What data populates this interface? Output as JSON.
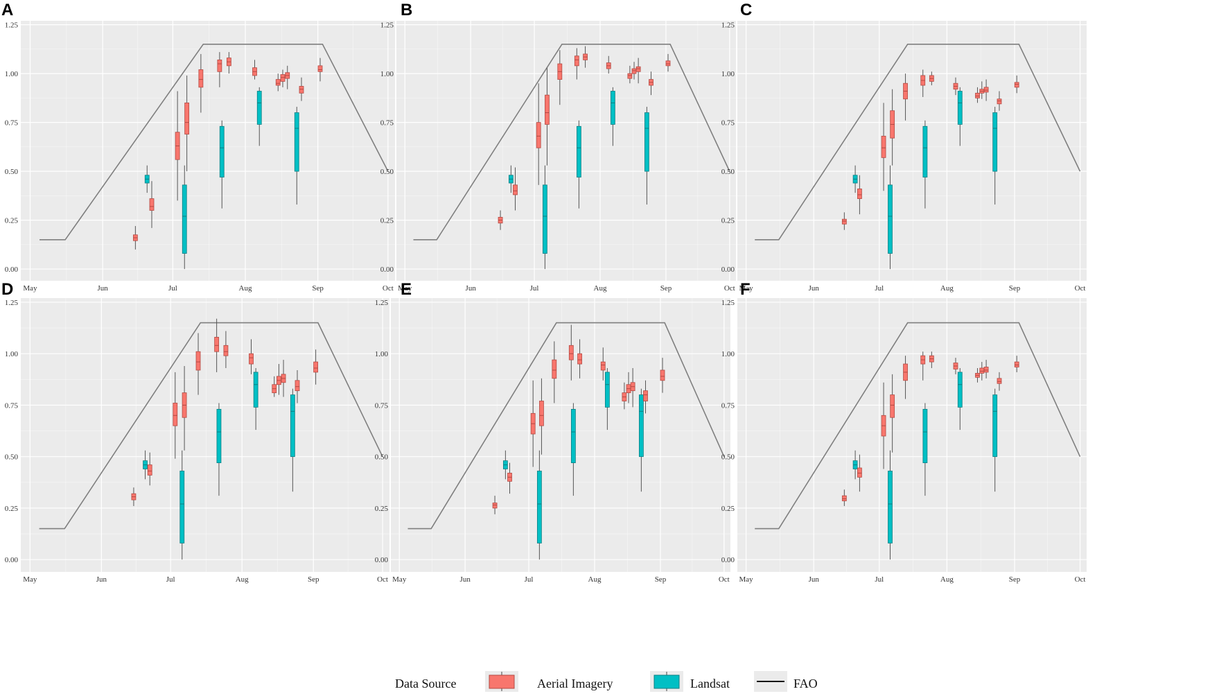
{
  "chart_data": {
    "type": "boxplot",
    "x_ticks": [
      "May",
      "Jun",
      "Jul",
      "Aug",
      "Sep",
      "Oct"
    ],
    "x_tick_days": [
      0,
      31,
      61,
      92,
      123,
      153
    ],
    "y_ticks": [
      "0.00",
      "0.25",
      "0.50",
      "0.75",
      "1.00",
      "1.25"
    ],
    "y_tick_values": [
      0,
      0.25,
      0.5,
      0.75,
      1.0,
      1.25
    ],
    "ylim": [
      -0.06,
      1.27
    ],
    "xlim": [
      -4,
      156
    ],
    "colors": {
      "aerial": "#F8766D",
      "landsat": "#00BFC4",
      "fao": "#7f7f7f",
      "panel_bg": "#EBEBEB",
      "grid": "#ffffff"
    },
    "fao_curve": {
      "name": "FAO",
      "x": [
        4,
        15,
        74,
        125,
        153
      ],
      "y": [
        0.15,
        0.15,
        1.15,
        1.15,
        0.5
      ]
    },
    "legend": {
      "title": "Data Source",
      "entries": [
        "Aerial Imagery",
        "Landsat",
        "FAO"
      ]
    },
    "landsat": [
      {
        "x": 50,
        "lower": 0.39,
        "q1": 0.44,
        "median": 0.46,
        "q3": 0.48,
        "upper": 0.53
      },
      {
        "x": 66,
        "lower": 0.0,
        "q1": 0.08,
        "median": 0.27,
        "q3": 0.43,
        "upper": 0.53
      },
      {
        "x": 82,
        "lower": 0.31,
        "q1": 0.47,
        "median": 0.62,
        "q3": 0.73,
        "upper": 0.76
      },
      {
        "x": 98,
        "lower": 0.63,
        "q1": 0.74,
        "median": 0.85,
        "q3": 0.91,
        "upper": 0.93
      },
      {
        "x": 114,
        "lower": 0.33,
        "q1": 0.5,
        "median": 0.72,
        "q3": 0.8,
        "upper": 0.83
      }
    ],
    "panels": [
      {
        "label": "A",
        "aerial": [
          {
            "x": 45,
            "lower": 0.1,
            "q1": 0.145,
            "median": 0.16,
            "q3": 0.175,
            "upper": 0.22
          },
          {
            "x": 52,
            "lower": 0.21,
            "q1": 0.3,
            "median": 0.32,
            "q3": 0.36,
            "upper": 0.45
          },
          {
            "x": 63,
            "lower": 0.35,
            "q1": 0.56,
            "median": 0.63,
            "q3": 0.7,
            "upper": 0.91
          },
          {
            "x": 67,
            "lower": 0.5,
            "q1": 0.69,
            "median": 0.75,
            "q3": 0.85,
            "upper": 0.99
          },
          {
            "x": 73,
            "lower": 0.8,
            "q1": 0.93,
            "median": 0.97,
            "q3": 1.02,
            "upper": 1.1
          },
          {
            "x": 81,
            "lower": 0.93,
            "q1": 1.01,
            "median": 1.05,
            "q3": 1.07,
            "upper": 1.11
          },
          {
            "x": 85,
            "lower": 1.0,
            "q1": 1.04,
            "median": 1.06,
            "q3": 1.08,
            "upper": 1.11
          },
          {
            "x": 96,
            "lower": 0.97,
            "q1": 0.99,
            "median": 1.01,
            "q3": 1.03,
            "upper": 1.07
          },
          {
            "x": 106,
            "lower": 0.91,
            "q1": 0.94,
            "median": 0.95,
            "q3": 0.97,
            "upper": 1.0
          },
          {
            "x": 108,
            "lower": 0.93,
            "q1": 0.96,
            "median": 0.98,
            "q3": 0.995,
            "upper": 1.02
          },
          {
            "x": 110,
            "lower": 0.92,
            "q1": 0.975,
            "median": 0.99,
            "q3": 1.005,
            "upper": 1.04
          },
          {
            "x": 116,
            "lower": 0.86,
            "q1": 0.9,
            "median": 0.92,
            "q3": 0.935,
            "upper": 0.98
          },
          {
            "x": 124,
            "lower": 0.96,
            "q1": 1.01,
            "median": 1.02,
            "q3": 1.04,
            "upper": 1.08
          }
        ]
      },
      {
        "label": "B",
        "aerial": [
          {
            "x": 45,
            "lower": 0.2,
            "q1": 0.235,
            "median": 0.25,
            "q3": 0.265,
            "upper": 0.3
          },
          {
            "x": 52,
            "lower": 0.3,
            "q1": 0.38,
            "median": 0.4,
            "q3": 0.43,
            "upper": 0.52
          },
          {
            "x": 63,
            "lower": 0.43,
            "q1": 0.62,
            "median": 0.68,
            "q3": 0.75,
            "upper": 0.95
          },
          {
            "x": 67,
            "lower": 0.53,
            "q1": 0.74,
            "median": 0.8,
            "q3": 0.89,
            "upper": 1.03
          },
          {
            "x": 73,
            "lower": 0.84,
            "q1": 0.97,
            "median": 1.01,
            "q3": 1.05,
            "upper": 1.12
          },
          {
            "x": 81,
            "lower": 0.97,
            "q1": 1.04,
            "median": 1.07,
            "q3": 1.09,
            "upper": 1.13
          },
          {
            "x": 85,
            "lower": 1.03,
            "q1": 1.07,
            "median": 1.085,
            "q3": 1.1,
            "upper": 1.14
          },
          {
            "x": 96,
            "lower": 1.0,
            "q1": 1.025,
            "median": 1.04,
            "q3": 1.055,
            "upper": 1.09
          },
          {
            "x": 106,
            "lower": 0.95,
            "q1": 0.975,
            "median": 0.99,
            "q3": 1.0,
            "upper": 1.04
          },
          {
            "x": 108,
            "lower": 0.97,
            "q1": 1.0,
            "median": 1.015,
            "q3": 1.025,
            "upper": 1.06
          },
          {
            "x": 110,
            "lower": 0.95,
            "q1": 1.01,
            "median": 1.025,
            "q3": 1.035,
            "upper": 1.08
          },
          {
            "x": 116,
            "lower": 0.89,
            "q1": 0.94,
            "median": 0.955,
            "q3": 0.97,
            "upper": 1.01
          },
          {
            "x": 124,
            "lower": 1.01,
            "q1": 1.04,
            "median": 1.05,
            "q3": 1.065,
            "upper": 1.1
          }
        ]
      },
      {
        "label": "C",
        "aerial": [
          {
            "x": 45,
            "lower": 0.2,
            "q1": 0.23,
            "median": 0.245,
            "q3": 0.255,
            "upper": 0.29
          },
          {
            "x": 52,
            "lower": 0.28,
            "q1": 0.36,
            "median": 0.38,
            "q3": 0.41,
            "upper": 0.48
          },
          {
            "x": 63,
            "lower": 0.4,
            "q1": 0.57,
            "median": 0.62,
            "q3": 0.68,
            "upper": 0.85
          },
          {
            "x": 67,
            "lower": 0.53,
            "q1": 0.67,
            "median": 0.74,
            "q3": 0.81,
            "upper": 0.92
          },
          {
            "x": 73,
            "lower": 0.76,
            "q1": 0.87,
            "median": 0.91,
            "q3": 0.95,
            "upper": 1.0
          },
          {
            "x": 81,
            "lower": 0.88,
            "q1": 0.94,
            "median": 0.965,
            "q3": 0.99,
            "upper": 1.02
          },
          {
            "x": 85,
            "lower": 0.94,
            "q1": 0.96,
            "median": 0.975,
            "q3": 0.99,
            "upper": 1.01
          },
          {
            "x": 96,
            "lower": 0.89,
            "q1": 0.92,
            "median": 0.935,
            "q3": 0.95,
            "upper": 0.98
          },
          {
            "x": 106,
            "lower": 0.85,
            "q1": 0.875,
            "median": 0.885,
            "q3": 0.9,
            "upper": 0.93
          },
          {
            "x": 108,
            "lower": 0.87,
            "q1": 0.9,
            "median": 0.91,
            "q3": 0.92,
            "upper": 0.96
          },
          {
            "x": 110,
            "lower": 0.86,
            "q1": 0.905,
            "median": 0.915,
            "q3": 0.93,
            "upper": 0.97
          },
          {
            "x": 116,
            "lower": 0.81,
            "q1": 0.845,
            "median": 0.86,
            "q3": 0.87,
            "upper": 0.91
          },
          {
            "x": 124,
            "lower": 0.9,
            "q1": 0.93,
            "median": 0.945,
            "q3": 0.955,
            "upper": 0.99
          }
        ]
      },
      {
        "label": "D",
        "aerial": [
          {
            "x": 45,
            "lower": 0.26,
            "q1": 0.29,
            "median": 0.305,
            "q3": 0.32,
            "upper": 0.35
          },
          {
            "x": 52,
            "lower": 0.36,
            "q1": 0.41,
            "median": 0.43,
            "q3": 0.46,
            "upper": 0.52
          },
          {
            "x": 63,
            "lower": 0.49,
            "q1": 0.65,
            "median": 0.7,
            "q3": 0.76,
            "upper": 0.91
          },
          {
            "x": 67,
            "lower": 0.53,
            "q1": 0.69,
            "median": 0.75,
            "q3": 0.81,
            "upper": 0.94
          },
          {
            "x": 73,
            "lower": 0.8,
            "q1": 0.92,
            "median": 0.96,
            "q3": 1.01,
            "upper": 1.1
          },
          {
            "x": 81,
            "lower": 0.91,
            "q1": 1.01,
            "median": 1.04,
            "q3": 1.08,
            "upper": 1.17
          },
          {
            "x": 85,
            "lower": 0.93,
            "q1": 0.99,
            "median": 1.01,
            "q3": 1.04,
            "upper": 1.11
          },
          {
            "x": 96,
            "lower": 0.9,
            "q1": 0.95,
            "median": 0.98,
            "q3": 1.0,
            "upper": 1.07
          },
          {
            "x": 106,
            "lower": 0.79,
            "q1": 0.81,
            "median": 0.83,
            "q3": 0.85,
            "upper": 0.89
          },
          {
            "x": 108,
            "lower": 0.8,
            "q1": 0.85,
            "median": 0.87,
            "q3": 0.89,
            "upper": 0.95
          },
          {
            "x": 110,
            "lower": 0.79,
            "q1": 0.86,
            "median": 0.88,
            "q3": 0.9,
            "upper": 0.97
          },
          {
            "x": 116,
            "lower": 0.76,
            "q1": 0.82,
            "median": 0.84,
            "q3": 0.87,
            "upper": 0.92
          },
          {
            "x": 124,
            "lower": 0.85,
            "q1": 0.91,
            "median": 0.93,
            "q3": 0.96,
            "upper": 1.02
          }
        ]
      },
      {
        "label": "E",
        "aerial": [
          {
            "x": 45,
            "lower": 0.22,
            "q1": 0.25,
            "median": 0.265,
            "q3": 0.275,
            "upper": 0.31
          },
          {
            "x": 52,
            "lower": 0.32,
            "q1": 0.38,
            "median": 0.4,
            "q3": 0.42,
            "upper": 0.47
          },
          {
            "x": 63,
            "lower": 0.45,
            "q1": 0.61,
            "median": 0.66,
            "q3": 0.71,
            "upper": 0.87
          },
          {
            "x": 67,
            "lower": 0.51,
            "q1": 0.65,
            "median": 0.7,
            "q3": 0.77,
            "upper": 0.88
          },
          {
            "x": 73,
            "lower": 0.76,
            "q1": 0.88,
            "median": 0.92,
            "q3": 0.97,
            "upper": 1.06
          },
          {
            "x": 81,
            "lower": 0.87,
            "q1": 0.97,
            "median": 1.0,
            "q3": 1.04,
            "upper": 1.14
          },
          {
            "x": 85,
            "lower": 0.88,
            "q1": 0.95,
            "median": 0.97,
            "q3": 1.0,
            "upper": 1.07
          },
          {
            "x": 96,
            "lower": 0.87,
            "q1": 0.92,
            "median": 0.945,
            "q3": 0.96,
            "upper": 1.03
          },
          {
            "x": 106,
            "lower": 0.73,
            "q1": 0.77,
            "median": 0.79,
            "q3": 0.81,
            "upper": 0.86
          },
          {
            "x": 108,
            "lower": 0.76,
            "q1": 0.81,
            "median": 0.83,
            "q3": 0.85,
            "upper": 0.91
          },
          {
            "x": 110,
            "lower": 0.74,
            "q1": 0.82,
            "median": 0.84,
            "q3": 0.86,
            "upper": 0.93
          },
          {
            "x": 116,
            "lower": 0.71,
            "q1": 0.77,
            "median": 0.8,
            "q3": 0.82,
            "upper": 0.87
          },
          {
            "x": 124,
            "lower": 0.81,
            "q1": 0.87,
            "median": 0.89,
            "q3": 0.92,
            "upper": 0.98
          }
        ]
      },
      {
        "label": "F",
        "aerial": [
          {
            "x": 45,
            "lower": 0.26,
            "q1": 0.285,
            "median": 0.295,
            "q3": 0.31,
            "upper": 0.34
          },
          {
            "x": 52,
            "lower": 0.33,
            "q1": 0.4,
            "median": 0.42,
            "q3": 0.445,
            "upper": 0.51
          },
          {
            "x": 63,
            "lower": 0.44,
            "q1": 0.6,
            "median": 0.65,
            "q3": 0.7,
            "upper": 0.86
          },
          {
            "x": 67,
            "lower": 0.52,
            "q1": 0.69,
            "median": 0.75,
            "q3": 0.8,
            "upper": 0.9
          },
          {
            "x": 73,
            "lower": 0.78,
            "q1": 0.87,
            "median": 0.91,
            "q3": 0.95,
            "upper": 0.99
          },
          {
            "x": 81,
            "lower": 0.87,
            "q1": 0.95,
            "median": 0.97,
            "q3": 0.99,
            "upper": 1.01
          },
          {
            "x": 85,
            "lower": 0.93,
            "q1": 0.96,
            "median": 0.975,
            "q3": 0.99,
            "upper": 1.01
          },
          {
            "x": 96,
            "lower": 0.9,
            "q1": 0.925,
            "median": 0.94,
            "q3": 0.955,
            "upper": 0.98
          },
          {
            "x": 106,
            "lower": 0.86,
            "q1": 0.885,
            "median": 0.895,
            "q3": 0.905,
            "upper": 0.93
          },
          {
            "x": 108,
            "lower": 0.87,
            "q1": 0.905,
            "median": 0.915,
            "q3": 0.93,
            "upper": 0.96
          },
          {
            "x": 110,
            "lower": 0.88,
            "q1": 0.91,
            "median": 0.92,
            "q3": 0.935,
            "upper": 0.97
          },
          {
            "x": 116,
            "lower": 0.82,
            "q1": 0.855,
            "median": 0.865,
            "q3": 0.88,
            "upper": 0.91
          },
          {
            "x": 124,
            "lower": 0.91,
            "q1": 0.935,
            "median": 0.945,
            "q3": 0.96,
            "upper": 0.99
          }
        ]
      }
    ]
  }
}
